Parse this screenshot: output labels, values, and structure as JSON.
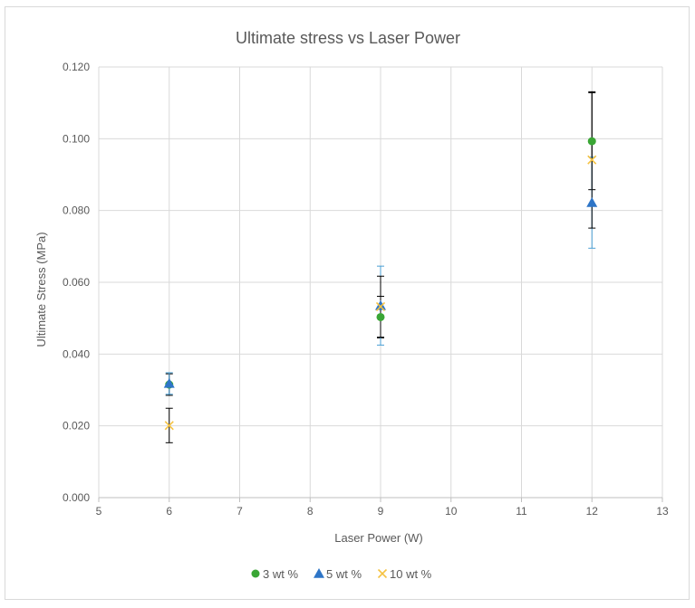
{
  "chart_data": {
    "type": "scatter",
    "title": "Ultimate stress vs Laser Power",
    "xlabel": "Laser Power (W)",
    "ylabel": "Ultimate Stress (MPa)",
    "xlim": [
      5,
      13
    ],
    "ylim": [
      0,
      0.12
    ],
    "x_ticks": [
      "5",
      "6",
      "7",
      "8",
      "9",
      "10",
      "11",
      "12",
      "13"
    ],
    "y_ticks": [
      "0.000",
      "0.020",
      "0.040",
      "0.060",
      "0.080",
      "0.100",
      "0.120"
    ],
    "grid": true,
    "legend_position": "bottom",
    "series": [
      {
        "name": "3 wt %",
        "marker": "circle",
        "color": "#3aa635",
        "error_color": "#000000",
        "points": [
          {
            "x": 6,
            "y": 0.0315,
            "err": 0.003
          },
          {
            "x": 9,
            "y": 0.0503,
            "err": 0.0058
          },
          {
            "x": 12,
            "y": 0.0993,
            "err": 0.0135
          }
        ]
      },
      {
        "name": "5 wt %",
        "marker": "triangle",
        "color": "#2e75c7",
        "error_color": "#4a9fd4",
        "points": [
          {
            "x": 6,
            "y": 0.0318,
            "err": 0.003
          },
          {
            "x": 9,
            "y": 0.0535,
            "err": 0.011
          },
          {
            "x": 12,
            "y": 0.0822,
            "err": 0.0127
          }
        ]
      },
      {
        "name": "10 wt %",
        "marker": "x",
        "color": "#f5c242",
        "error_color": "#000000",
        "points": [
          {
            "x": 6,
            "y": 0.0201,
            "err": 0.0048
          },
          {
            "x": 9,
            "y": 0.0532,
            "err": 0.0085
          },
          {
            "x": 12,
            "y": 0.0941,
            "err": 0.019
          }
        ]
      }
    ]
  }
}
